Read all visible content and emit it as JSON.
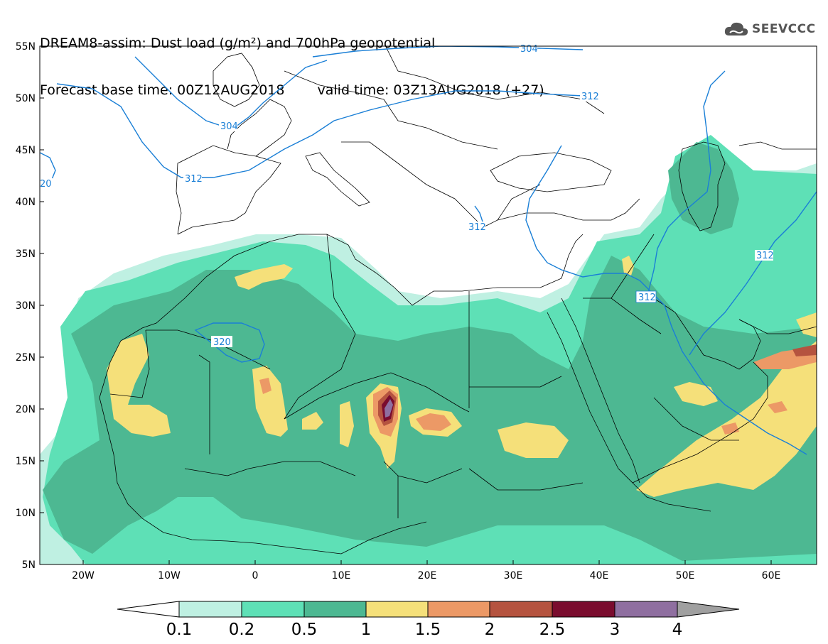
{
  "title": {
    "line1": "DREAM8-assim: Dust load (g/m²) and 700hPa geopotential",
    "forecast_base": "Forecast base time: 00Z12AUG2018",
    "valid": "valid time: 03Z13AUG2018 (+27)"
  },
  "logo": {
    "text": "SEEVCCC",
    "icon": "cloud-icon"
  },
  "map": {
    "lat_labels": [
      "55N",
      "50N",
      "45N",
      "40N",
      "35N",
      "30N",
      "25N",
      "20N",
      "15N",
      "10N",
      "5N"
    ],
    "lon_labels": [
      "20W",
      "10W",
      "0",
      "10E",
      "20E",
      "30E",
      "40E",
      "50E",
      "60E"
    ],
    "contour_labels": [
      "304",
      "304",
      "312",
      "312",
      "312",
      "312",
      "320",
      "20",
      "312"
    ]
  },
  "colorbar": {
    "labels": [
      "0.1",
      "0.2",
      "0.5",
      "1",
      "1.5",
      "2",
      "2.5",
      "3",
      "4"
    ],
    "colors": [
      "#bff0e2",
      "#5ee0b6",
      "#4db892",
      "#f5e07a",
      "#ec9966",
      "#b5533f",
      "#7a0c2e",
      "#8f6fa0"
    ],
    "extend_low": "#ffffff",
    "extend_high": "#a0a0a0"
  },
  "colors": {
    "contour": "#1a7fd6",
    "border": "#000000"
  }
}
